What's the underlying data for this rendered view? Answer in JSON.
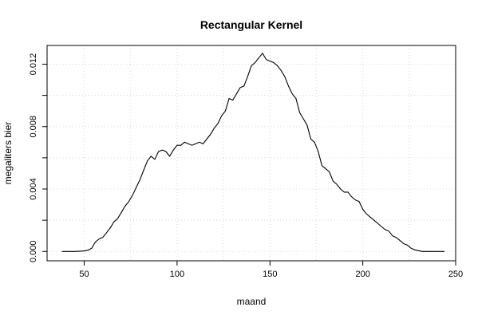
{
  "chart_data": {
    "type": "line",
    "title": "Rectangular Kernel",
    "xlabel": "maand",
    "ylabel": "megaliters bier",
    "xlim": [
      30,
      250
    ],
    "ylim": [
      -0.0006,
      0.0132
    ],
    "xticks": [
      50,
      100,
      150,
      200,
      250
    ],
    "yticks": [
      0.0,
      0.004,
      0.008,
      0.012
    ],
    "ytick_labels": [
      "0.000",
      "0.004",
      "0.008",
      "0.012"
    ],
    "grid": true,
    "series": [
      {
        "color": "#000000",
        "x": [
          38,
          45,
          50,
          52,
          54,
          56,
          58,
          60,
          62,
          64,
          66,
          68,
          70,
          72,
          74,
          76,
          78,
          80,
          82,
          84,
          86,
          88,
          90,
          92,
          94,
          96,
          98,
          100,
          102,
          104,
          106,
          108,
          110,
          112,
          114,
          116,
          118,
          120,
          122,
          124,
          126,
          128,
          130,
          132,
          134,
          136,
          138,
          140,
          142,
          144,
          146,
          148,
          150,
          152,
          154,
          156,
          158,
          160,
          162,
          164,
          166,
          168,
          170,
          172,
          174,
          176,
          178,
          180,
          182,
          184,
          186,
          188,
          190,
          192,
          194,
          196,
          198,
          200,
          202,
          204,
          206,
          208,
          210,
          212,
          214,
          216,
          218,
          220,
          222,
          224,
          226,
          228,
          230,
          232,
          234,
          236,
          240,
          244
        ],
        "y": [
          0.0,
          0.0,
          3e-05,
          8e-05,
          0.0002,
          0.0006,
          0.0008,
          0.0009,
          0.0012,
          0.0015,
          0.0019,
          0.0021,
          0.0025,
          0.0029,
          0.0032,
          0.0036,
          0.0041,
          0.0046,
          0.0052,
          0.0058,
          0.0061,
          0.0059,
          0.0064,
          0.0065,
          0.0064,
          0.0061,
          0.0065,
          0.0068,
          0.0068,
          0.007,
          0.0069,
          0.0068,
          0.0069,
          0.007,
          0.0069,
          0.0072,
          0.0075,
          0.0079,
          0.0082,
          0.0087,
          0.009,
          0.0098,
          0.0097,
          0.0101,
          0.0105,
          0.0106,
          0.0112,
          0.0119,
          0.0121,
          0.0124,
          0.0127,
          0.0123,
          0.0122,
          0.0121,
          0.0119,
          0.0116,
          0.0112,
          0.0106,
          0.0101,
          0.0098,
          0.0089,
          0.0085,
          0.0081,
          0.0072,
          0.007,
          0.0064,
          0.0055,
          0.0053,
          0.0051,
          0.0045,
          0.0043,
          0.004,
          0.0038,
          0.0038,
          0.0035,
          0.0033,
          0.0032,
          0.0027,
          0.0024,
          0.0022,
          0.002,
          0.0018,
          0.0016,
          0.0014,
          0.0013,
          0.001,
          0.0009,
          0.0007,
          0.0005,
          0.0004,
          0.0002,
          0.0001,
          5e-05,
          0.0,
          0.0,
          0.0,
          0.0,
          0.0
        ]
      }
    ]
  }
}
